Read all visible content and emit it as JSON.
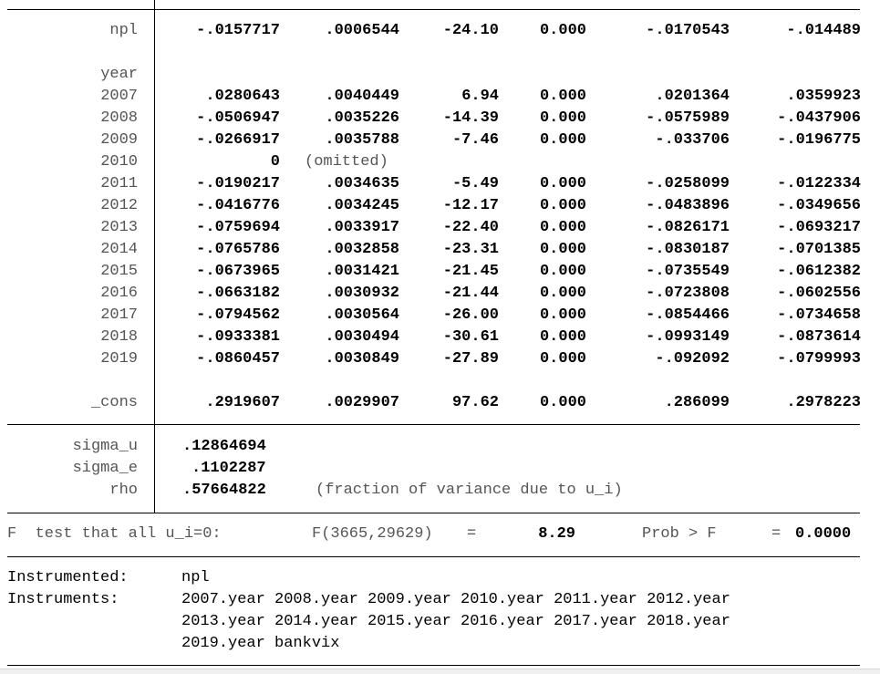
{
  "main": {
    "npl": {
      "label": "npl",
      "coef": "-.0157717",
      "se": ".0006544",
      "z": "-24.10",
      "p": "0.000",
      "ci_lo": "-.0170543",
      "ci_hi": "-.014489"
    },
    "year_label": "year",
    "years": [
      {
        "label": "2007",
        "coef": ".0280643",
        "se": ".0040449",
        "z": "6.94",
        "p": "0.000",
        "ci_lo": ".0201364",
        "ci_hi": ".0359923"
      },
      {
        "label": "2008",
        "coef": "-.0506947",
        "se": ".0035226",
        "z": "-14.39",
        "p": "0.000",
        "ci_lo": "-.0575989",
        "ci_hi": "-.0437906"
      },
      {
        "label": "2009",
        "coef": "-.0266917",
        "se": ".0035788",
        "z": "-7.46",
        "p": "0.000",
        "ci_lo": "-.033706",
        "ci_hi": "-.0196775"
      },
      {
        "label": "2010",
        "coef": "0",
        "se": "(omitted)",
        "z": "",
        "p": "",
        "ci_lo": "",
        "ci_hi": ""
      },
      {
        "label": "2011",
        "coef": "-.0190217",
        "se": ".0034635",
        "z": "-5.49",
        "p": "0.000",
        "ci_lo": "-.0258099",
        "ci_hi": "-.0122334"
      },
      {
        "label": "2012",
        "coef": "-.0416776",
        "se": ".0034245",
        "z": "-12.17",
        "p": "0.000",
        "ci_lo": "-.0483896",
        "ci_hi": "-.0349656"
      },
      {
        "label": "2013",
        "coef": "-.0759694",
        "se": ".0033917",
        "z": "-22.40",
        "p": "0.000",
        "ci_lo": "-.0826171",
        "ci_hi": "-.0693217"
      },
      {
        "label": "2014",
        "coef": "-.0765786",
        "se": ".0032858",
        "z": "-23.31",
        "p": "0.000",
        "ci_lo": "-.0830187",
        "ci_hi": "-.0701385"
      },
      {
        "label": "2015",
        "coef": "-.0673965",
        "se": ".0031421",
        "z": "-21.45",
        "p": "0.000",
        "ci_lo": "-.0735549",
        "ci_hi": "-.0612382"
      },
      {
        "label": "2016",
        "coef": "-.0663182",
        "se": ".0030932",
        "z": "-21.44",
        "p": "0.000",
        "ci_lo": "-.0723808",
        "ci_hi": "-.0602556"
      },
      {
        "label": "2017",
        "coef": "-.0794562",
        "se": ".0030564",
        "z": "-26.00",
        "p": "0.000",
        "ci_lo": "-.0854466",
        "ci_hi": "-.0734658"
      },
      {
        "label": "2018",
        "coef": "-.0933381",
        "se": ".0030494",
        "z": "-30.61",
        "p": "0.000",
        "ci_lo": "-.0993149",
        "ci_hi": "-.0873614"
      },
      {
        "label": "2019",
        "coef": "-.0860457",
        "se": ".0030849",
        "z": "-27.89",
        "p": "0.000",
        "ci_lo": "-.092092",
        "ci_hi": "-.0799993"
      }
    ],
    "cons": {
      "label": "_cons",
      "coef": ".2919607",
      "se": ".0029907",
      "z": "97.62",
      "p": "0.000",
      "ci_lo": ".286099",
      "ci_hi": ".2978223"
    }
  },
  "sigma": {
    "sigma_u": {
      "label": "sigma_u",
      "value": ".12864694"
    },
    "sigma_e": {
      "label": "sigma_e",
      "value": ".1102287"
    },
    "rho": {
      "label": "rho",
      "value": ".57664822",
      "note": "(fraction of variance due to u_i)"
    }
  },
  "ftest": {
    "prefix": "F  test that all u_i=0:",
    "f_label": "F(3665,29629)",
    "eq1": "=",
    "f_value": "8.29",
    "prob_label": "Prob > F",
    "eq2": "=",
    "prob_value": "0.0000"
  },
  "instr": {
    "instrumented_label": "Instrumented:",
    "instrumented_value": "npl",
    "instruments_label": "Instruments:",
    "instruments_lines": [
      "2007.year 2008.year 2009.year 2010.year 2011.year 2012.year",
      "2013.year 2014.year 2015.year 2016.year 2017.year 2018.year",
      "2019.year bankvix"
    ]
  }
}
